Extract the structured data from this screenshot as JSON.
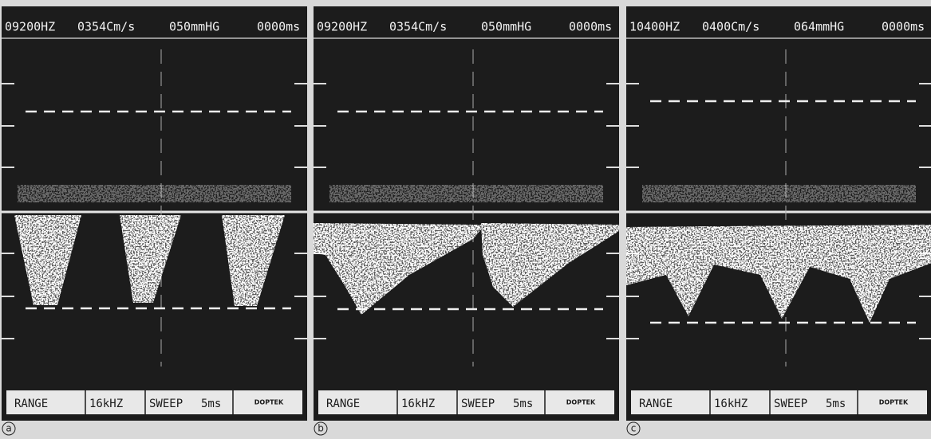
{
  "panels": [
    {
      "label": "a",
      "header": [
        "09200HZ",
        "0354Cm/s",
        "050mmHG",
        "0000ms"
      ],
      "footer": {
        "range": "RANGE",
        "frequency": "16kHZ",
        "sweep": "SWEEP",
        "time": "5ms",
        "brand": "DOPTEK"
      }
    },
    {
      "label": "b",
      "header": [
        "09200HZ",
        "0354Cm/s",
        "050mmHG",
        "0000ms"
      ],
      "footer": {
        "range": "RANGE",
        "frequency": "16kHZ",
        "sweep": "SWEEP",
        "time": "5ms",
        "brand": "DOPTEK"
      }
    },
    {
      "label": "c",
      "header": [
        "10400HZ",
        "0400Cm/s",
        "064mmHG",
        "0000ms"
      ],
      "footer": {
        "range": "RANGE",
        "frequency": "16kHZ",
        "sweep": "SWEEP",
        "time": "5ms",
        "brand": "DOPTEK"
      }
    }
  ]
}
